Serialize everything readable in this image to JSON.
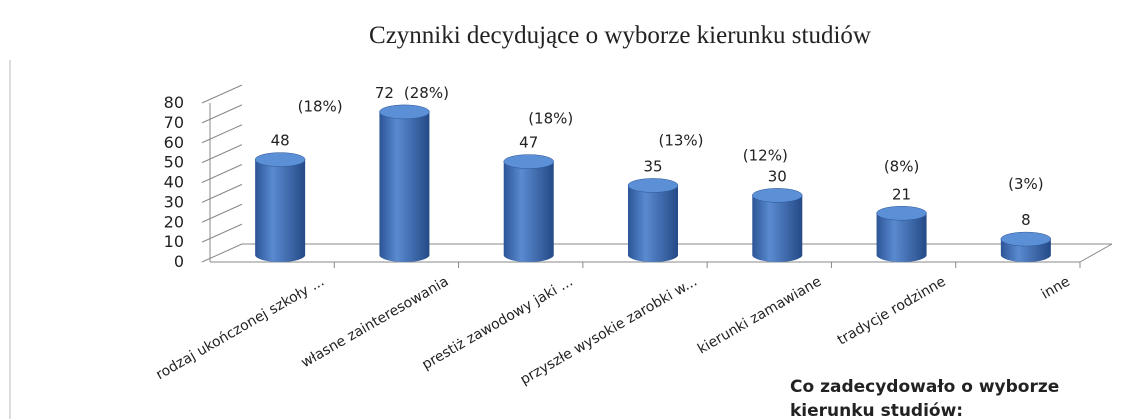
{
  "chart_data": {
    "type": "bar",
    "title": "Czynniki decydujące o wyborze kierunku studiów",
    "categories": [
      "rodzaj ukończonej szkoły ...",
      "własne zainteresowania",
      "prestiż zawodowy jaki ...",
      "przyszłe wysokie zarobki w...",
      "kierunki zamawiane",
      "tradycje rodzinne",
      "inne"
    ],
    "values": [
      48,
      72,
      47,
      35,
      30,
      21,
      8
    ],
    "percent_labels": [
      "(18%)",
      "(28%)",
      "(18%)",
      "(13%)",
      "(12%)",
      "(8%)",
      "(3%)"
    ],
    "color": "#3f6fb5",
    "ylim": [
      0,
      80
    ],
    "yticks": [
      0,
      10,
      20,
      30,
      40,
      50,
      60,
      70,
      80
    ],
    "annotation": [
      "Co zadecydowało o wyborze",
      "kierunku studiów:"
    ]
  }
}
